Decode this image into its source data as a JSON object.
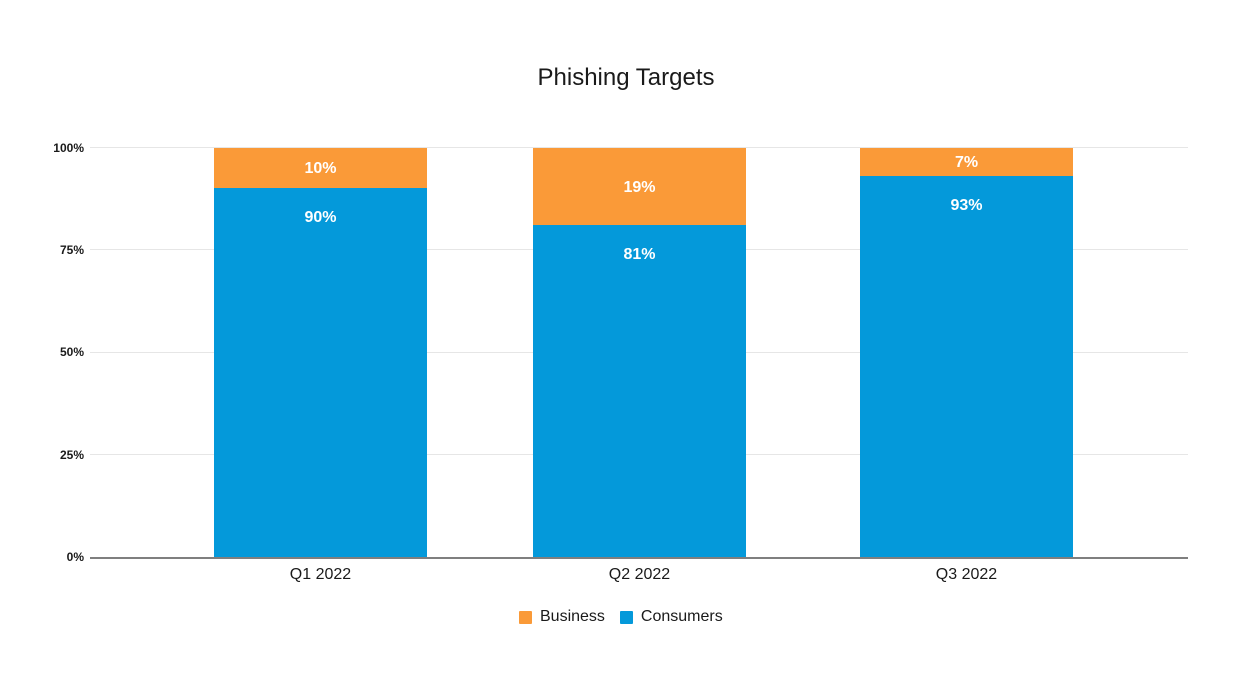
{
  "chart_data": {
    "type": "bar",
    "stacked": true,
    "orientation": "vertical",
    "title": "Phishing Targets",
    "categories": [
      "Q1 2022",
      "Q2 2022",
      "Q3 2022"
    ],
    "series": [
      {
        "name": "Business",
        "color": "#fa9a38",
        "values": [
          10,
          19,
          7
        ],
        "data_labels": [
          "10%",
          "19%",
          "7%"
        ]
      },
      {
        "name": "Consumers",
        "color": "#0499da",
        "values": [
          90,
          81,
          93
        ],
        "data_labels": [
          "90%",
          "81%",
          "93%"
        ]
      }
    ],
    "xlabel": "",
    "ylabel": "",
    "ylim": [
      0,
      100
    ],
    "y_ticks": [
      {
        "value": 0,
        "label": "0%"
      },
      {
        "value": 25,
        "label": "25%"
      },
      {
        "value": 50,
        "label": "50%"
      },
      {
        "value": 75,
        "label": "75%"
      },
      {
        "value": 100,
        "label": "100%"
      }
    ],
    "grid": true,
    "legend_position": "bottom",
    "legend": [
      {
        "label": "Business",
        "color": "#fa9a38"
      },
      {
        "label": "Consumers",
        "color": "#0499da"
      }
    ],
    "data_label_color": "#ffffff",
    "background_color": "#ffffff",
    "gridline_color": "#e6e6e6",
    "baseline_color": "#7f7f7f",
    "text_color": "#1a1a1a"
  }
}
